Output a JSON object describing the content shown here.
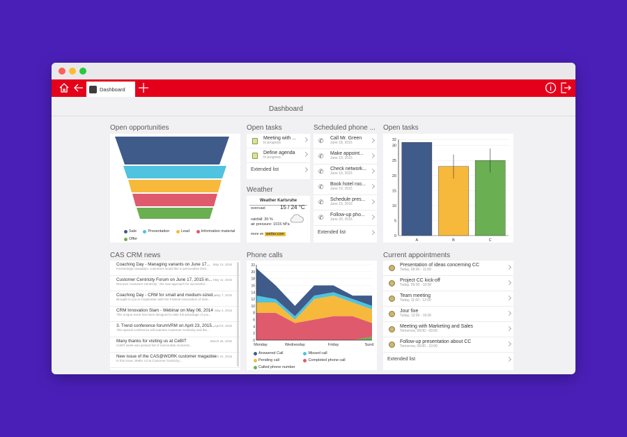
{
  "app": {
    "tab_label": "Dashboard",
    "page_title": "Dashboard"
  },
  "colors": {
    "accent": "#e4001b",
    "background": "#4a1fb8"
  },
  "icons": {
    "home": "home-icon",
    "back": "back-arrow-icon",
    "add": "plus-icon",
    "info": "info-icon",
    "logout": "logout-icon"
  },
  "opportunities": {
    "title": "Open opportunities",
    "legend": [
      {
        "label": "Sale",
        "color": "#3e5b8a"
      },
      {
        "label": "Presentation",
        "color": "#4fc3df"
      },
      {
        "label": "Lead",
        "color": "#f6b93b"
      },
      {
        "label": "Information material",
        "color": "#e05a6d"
      },
      {
        "label": "Offer",
        "color": "#6aaf52"
      }
    ]
  },
  "open_tasks_list": {
    "title": "Open tasks",
    "items": [
      {
        "title": "Meeting with ...",
        "sub": "In progress"
      },
      {
        "title": "Define agenda",
        "sub": "In progress"
      }
    ],
    "extended": "Extended list"
  },
  "weather": {
    "title": "Weather",
    "header": "Weather Karlsruhe",
    "condition": "overcast",
    "temp": "15 / 24 °C",
    "rainfall": "rainfall: 30 %",
    "pressure": "air pressure: 1015 hPa",
    "more_on": "more on",
    "source": "wetter.com"
  },
  "scheduled_phone": {
    "title": "Scheduled phone ...",
    "items": [
      {
        "title": "Call Mr. Green",
        "sub": "June 18, 2015"
      },
      {
        "title": "Make appoint...",
        "sub": "June 19, 2015"
      },
      {
        "title": "Check network...",
        "sub": "June 19, 2015"
      },
      {
        "title": "Book hotel roo...",
        "sub": "June 19, 2015"
      },
      {
        "title": "Schedule pres...",
        "sub": "June 19, 2015"
      },
      {
        "title": "Follow-up pho...",
        "sub": "June 20, 2015"
      }
    ],
    "extended": "Extended list"
  },
  "chart_data": [
    {
      "type": "bar",
      "title": "Open tasks",
      "categories": [
        "A",
        "B",
        "C"
      ],
      "values": [
        31,
        23,
        25
      ],
      "colors": [
        "#3e5b8a",
        "#f6b93b",
        "#6aaf52"
      ],
      "error": [
        0,
        4,
        4
      ],
      "ylim": [
        0,
        32
      ],
      "yticks": [
        0,
        5,
        10,
        15,
        20,
        25,
        30,
        32
      ],
      "grid": true
    },
    {
      "type": "area",
      "title": "Phone calls",
      "categories": [
        "Monday",
        "Wednesday",
        "Friday",
        "Sund"
      ],
      "x": [
        0,
        1,
        2,
        3,
        4,
        5,
        6
      ],
      "series": [
        {
          "name": "Called phone number",
          "color": "#6aaf52",
          "values": [
            0,
            0,
            0,
            0,
            0,
            0,
            1
          ]
        },
        {
          "name": "Completed phone call",
          "color": "#e05a6d",
          "values": [
            8,
            8,
            5,
            6,
            7,
            7,
            4
          ]
        },
        {
          "name": "Pending call",
          "color": "#f6b93b",
          "values": [
            3,
            3,
            1,
            6,
            6,
            4,
            4
          ]
        },
        {
          "name": "Missed call",
          "color": "#4fc3df",
          "values": [
            2,
            1,
            1,
            1,
            1,
            1,
            1
          ]
        },
        {
          "name": "Answered Call",
          "color": "#3e5b8a",
          "values": [
            8,
            4,
            3,
            3,
            2,
            1,
            3
          ]
        }
      ],
      "legend": [
        "Answered Call",
        "Missed call",
        "Pending call",
        "Completed phone call",
        "Called phone number"
      ],
      "ylim": [
        0,
        22
      ],
      "yticks": [
        0,
        2,
        4,
        6,
        8,
        10,
        12,
        14,
        16,
        18,
        20,
        22
      ]
    }
  ],
  "news": {
    "title": "CAS CRM news",
    "items": [
      {
        "title": "Coaching Day - Managing variants on June 17...",
        "date": "May 12, 2015",
        "sub": "Increasingly nowadays, customers would like to personalise their..."
      },
      {
        "title": "Customer Centricity Forum on June 17, 2015 in...",
        "date": "May 11, 2015",
        "sub": "Discover Customer Centricity - the new approach for successful..."
      },
      {
        "title": "Coaching Day - CRM for small and medium-sized...",
        "date": "May 7, 2015",
        "sub": "Brought to you in cooperation with the Federal Association of Sele..."
      },
      {
        "title": "CRM Innovation Slam - Webinar on May 06, 2014",
        "date": "May 4, 2015",
        "sub": "This unique event has been designed to take full advantage of you..."
      },
      {
        "title": "3. Trend conference forumVRM on April 23, 2015...",
        "date": "April 8, 2015",
        "sub": "This special conference will examine Customer Centricity and the..."
      },
      {
        "title": "Many thanks for visiting us at CeBIT",
        "date": "March 26, 2015",
        "sub": "CeBIT week was packed full of memorable moments..."
      },
      {
        "title": "New issue of the CAS@WORK customer magazine",
        "date": "March 24, 2015",
        "sub": "In this issue: SMEs 4.0 & Customer Centricity..."
      }
    ]
  },
  "phone_calls": {
    "title": "Phone calls"
  },
  "appointments": {
    "title": "Current appointments",
    "items": [
      {
        "title": "Presentation of ideas concerning CC",
        "sub": "Today, 09:00 - 11:00"
      },
      {
        "title": "Project CC kick-off",
        "sub": "Today, 09:00 - 10:00"
      },
      {
        "title": "Team meeting",
        "sub": "Today, 11:00 - 12:00"
      },
      {
        "title": "Jour fixe",
        "sub": "Today, 13:00 - 16:00"
      },
      {
        "title": "Meeting with Marketing and Sales",
        "sub": "Tomorrow, 09:00 - 09:00"
      },
      {
        "title": "Follow-up presentation about CC",
        "sub": "Tomorrow, 09:00 - 10:00"
      }
    ],
    "extended": "Extended list"
  }
}
